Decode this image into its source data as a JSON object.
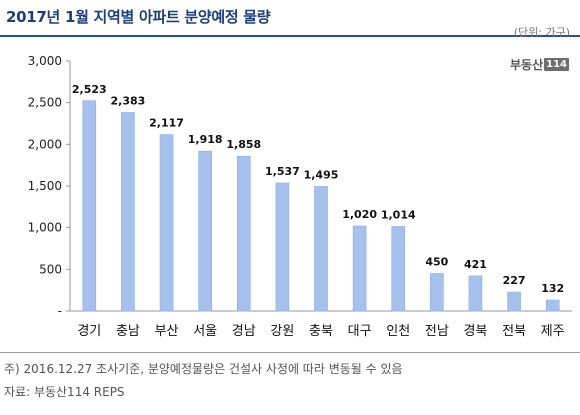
{
  "title": "2017년 1월 지역별 아파트 분양예정 물량",
  "unit": "(단위: 가구)",
  "logo": {
    "text": "부동산",
    "number": "114"
  },
  "note": "주) 2016.12.27 조사기준, 분양예정물량은 건설사 사정에 따라 변동될 수 있음",
  "source": "자료: 부동산114 REPS",
  "colors": {
    "bar": "#a6c2ec",
    "bar_edge": "#8aaee4",
    "title": "#1c3f78",
    "axis": "#9a9a9a"
  },
  "chart_data": {
    "type": "bar",
    "title": "2017년 1월 지역별 아파트 분양예정 물량",
    "xlabel": "",
    "ylabel": "",
    "unit": "(단위: 가구)",
    "ylim": [
      0,
      3000
    ],
    "yticks": [
      "-",
      "500",
      "1,000",
      "1,500",
      "2,000",
      "2,500",
      "3,000"
    ],
    "grid": false,
    "categories": [
      "경기",
      "충남",
      "부산",
      "서울",
      "경남",
      "강원",
      "충북",
      "대구",
      "인천",
      "전남",
      "경북",
      "전북",
      "제주"
    ],
    "values": [
      2523,
      2383,
      2117,
      1918,
      1858,
      1537,
      1495,
      1020,
      1014,
      450,
      421,
      227,
      132
    ],
    "labels": [
      "2,523",
      "2,383",
      "2,117",
      "1,918",
      "1,858",
      "1,537",
      "1,495",
      "1,020",
      "1,014",
      "450",
      "421",
      "227",
      "132"
    ]
  }
}
